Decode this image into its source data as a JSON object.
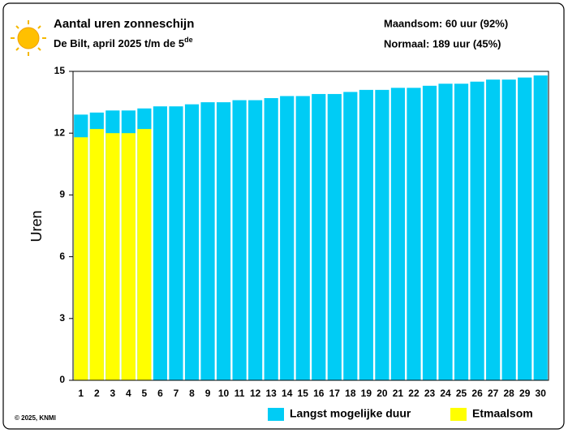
{
  "chart_data": {
    "type": "bar",
    "title": "Aantal uren zonneschijn",
    "subtitle": "De Bilt, april 2025 t/m de 5",
    "subtitle_sup": "de",
    "annotations": [
      "Maandsom: 60 uur (92%)",
      "Normaal: 189 uur (45%)"
    ],
    "footer": "© 2025, KNMI",
    "ylabel": "Uren",
    "categories": [
      1,
      2,
      3,
      4,
      5,
      6,
      7,
      8,
      9,
      10,
      11,
      12,
      13,
      14,
      15,
      16,
      17,
      18,
      19,
      20,
      21,
      22,
      23,
      24,
      25,
      26,
      27,
      28,
      29,
      30
    ],
    "series": [
      {
        "name": "Langst mogelijke duur",
        "color": "#00ccf5",
        "values": [
          12.9,
          13.0,
          13.1,
          13.1,
          13.2,
          13.3,
          13.3,
          13.4,
          13.5,
          13.5,
          13.6,
          13.6,
          13.7,
          13.8,
          13.8,
          13.9,
          13.9,
          14.0,
          14.1,
          14.1,
          14.2,
          14.2,
          14.3,
          14.4,
          14.4,
          14.5,
          14.6,
          14.6,
          14.7,
          14.8
        ]
      },
      {
        "name": "Etmaalsom",
        "color": "#ffff00",
        "values": [
          11.8,
          12.2,
          12.0,
          12.0,
          12.2,
          null,
          null,
          null,
          null,
          null,
          null,
          null,
          null,
          null,
          null,
          null,
          null,
          null,
          null,
          null,
          null,
          null,
          null,
          null,
          null,
          null,
          null,
          null,
          null,
          null
        ]
      }
    ],
    "ylim": [
      0,
      15
    ],
    "yticks": [
      0,
      3,
      6,
      9,
      12,
      15
    ],
    "grid": false
  }
}
